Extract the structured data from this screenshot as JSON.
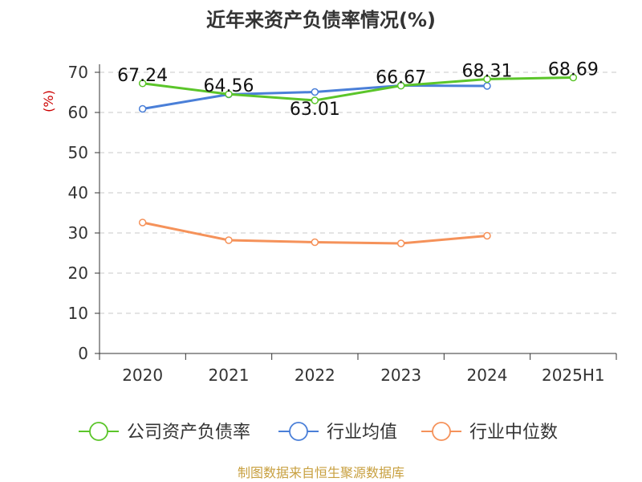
{
  "chart_data": {
    "type": "line",
    "title": "近年来资产负债率情况(%)",
    "ylabel": "(%)",
    "xlabel": "",
    "categories": [
      "2020",
      "2021",
      "2022",
      "2023",
      "2024",
      "2025H1"
    ],
    "ylim": [
      0,
      70
    ],
    "yticks": [
      0,
      10,
      20,
      30,
      40,
      50,
      60,
      70
    ],
    "grid": true,
    "legend_position": "bottom",
    "series": [
      {
        "name": "公司资产负债率",
        "color": "#5bc52a",
        "values": [
          67.24,
          64.56,
          63.01,
          66.67,
          68.31,
          68.69
        ],
        "labels": [
          "67.24",
          "64.56",
          "63.01",
          "66.67",
          "68.31",
          "68.69"
        ]
      },
      {
        "name": "行业均值",
        "color": "#4a7fd8",
        "values": [
          60.9,
          64.5,
          65.1,
          66.7,
          66.6,
          null
        ]
      },
      {
        "name": "行业中位数",
        "color": "#f5925a",
        "values": [
          32.6,
          28.2,
          27.7,
          27.4,
          29.3,
          null
        ]
      }
    ]
  },
  "source": "制图数据来自恒生聚源数据库"
}
